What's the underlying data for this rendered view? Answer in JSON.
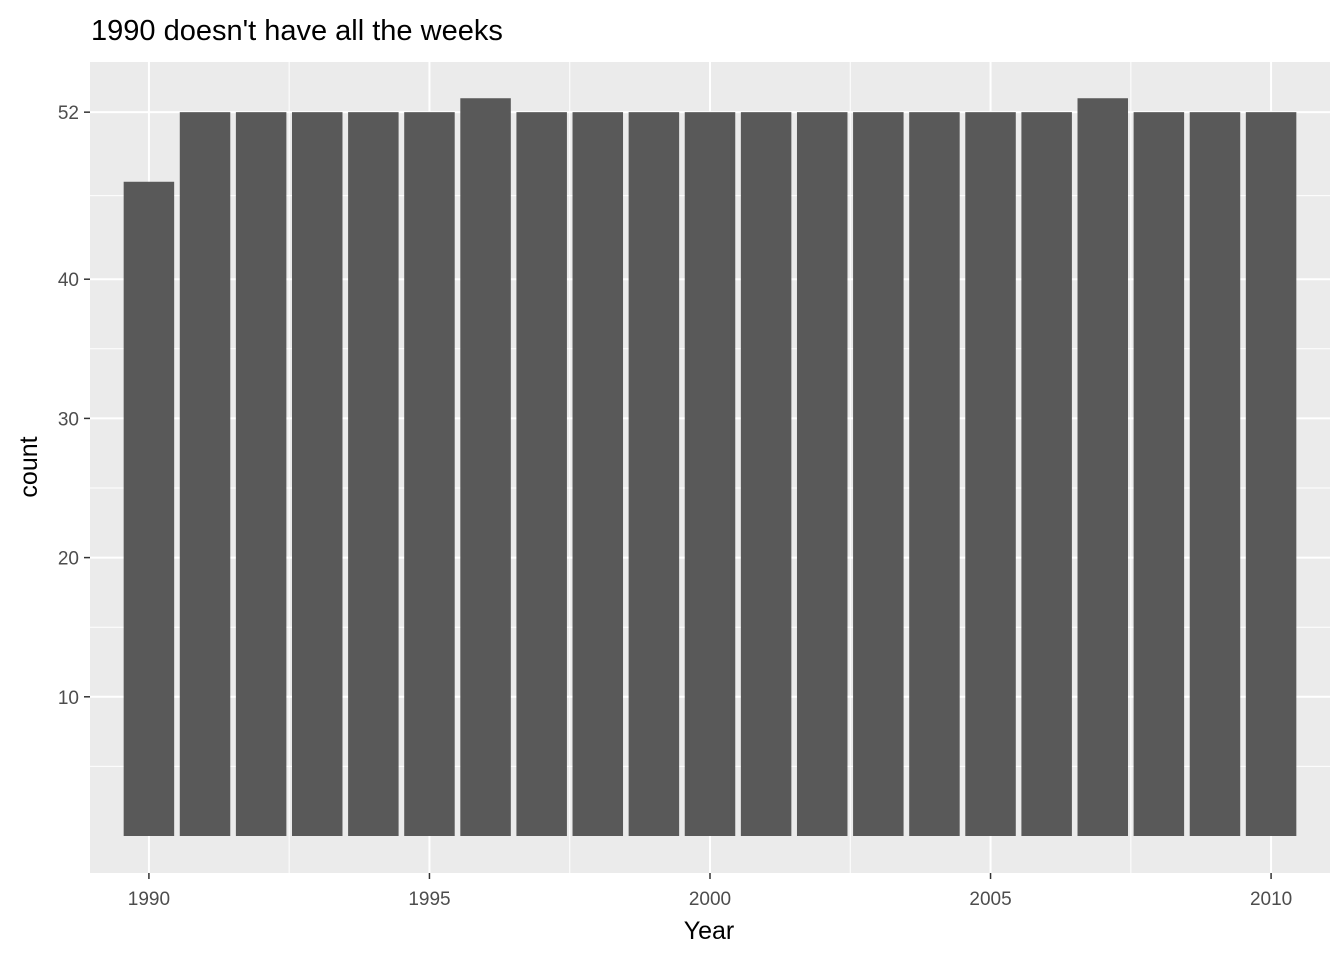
{
  "chart_data": {
    "type": "bar",
    "title": "1990 doesn't have all the weeks",
    "xlabel": "Year",
    "ylabel": "count",
    "x": [
      1990,
      1991,
      1992,
      1993,
      1994,
      1995,
      1996,
      1997,
      1998,
      1999,
      2000,
      2001,
      2002,
      2003,
      2004,
      2005,
      2006,
      2007,
      2008,
      2009,
      2010
    ],
    "values": [
      47,
      52,
      52,
      52,
      52,
      52,
      53,
      52,
      52,
      52,
      52,
      52,
      52,
      52,
      52,
      52,
      52,
      53,
      52,
      52,
      52
    ],
    "xlim": [
      1988.6,
      1991.0
    ],
    "ylim": [
      0,
      54.6
    ],
    "x_ticks": [
      1990,
      1995,
      2000,
      2005,
      2010
    ],
    "x_tick_labels": [
      "1990",
      "1995",
      "2000",
      "2005",
      "2010"
    ],
    "y_ticks": [
      10,
      20,
      30,
      40,
      52
    ],
    "y_tick_labels": [
      "10",
      "20",
      "30",
      "40",
      "52"
    ],
    "grid": true,
    "legend": "none",
    "colors": {
      "bar": "#595959",
      "panel_background": "#ebebeb",
      "grid": "#ffffff",
      "tick_text": "#4d4d4d"
    }
  }
}
